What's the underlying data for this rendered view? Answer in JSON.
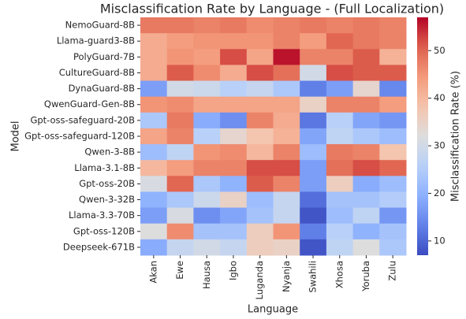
{
  "chart_data": {
    "type": "heatmap",
    "title": "Misclassification Rate by Language - (Full Localization)",
    "x_label": "Language",
    "y_label": "Model",
    "colorbar_label": "Misclassification Rate (%)",
    "colormap": "coolwarm",
    "columns": [
      "Akan",
      "Ewe",
      "Hausa",
      "Igbo",
      "Luganda",
      "Nyanja",
      "Swahili",
      "Xhosa",
      "Yoruba",
      "Zulu"
    ],
    "rows": [
      "NemoGuard-8B",
      "Llama-guard3-8B",
      "PolyGuard-7B",
      "CultureGuard-8B",
      "DynaGuard-8B",
      "QwenGuard-Gen-8B",
      "Gpt-oss-safeguard-20B",
      "Gpt-oss-safeguard-120B",
      "Qwen-3-8B",
      "Llama-3.1-8B",
      "Gpt-oss-20B",
      "Qwen-3-32B",
      "Llama-3.3-70B",
      "Gpt-oss-120B",
      "Deepseek-671B"
    ],
    "values": [
      [
        48,
        48,
        47,
        48,
        46,
        47,
        48,
        47,
        48,
        47
      ],
      [
        42,
        44,
        45,
        45,
        45,
        47,
        44,
        50,
        48,
        47
      ],
      [
        42,
        45,
        44,
        52,
        43,
        56,
        47,
        47,
        51,
        41
      ],
      [
        42,
        51,
        46,
        42,
        52,
        49,
        30,
        52,
        51,
        51
      ],
      [
        17,
        30,
        29,
        26,
        28,
        24,
        13,
        17,
        34,
        14
      ],
      [
        45,
        46,
        43,
        43,
        43,
        43,
        35,
        47,
        47,
        44
      ],
      [
        24,
        48,
        19,
        15,
        47,
        42,
        12,
        26,
        18,
        16
      ],
      [
        43,
        47,
        26,
        34,
        38,
        41,
        18,
        27,
        24,
        22
      ],
      [
        22,
        27,
        45,
        46,
        40,
        47,
        22,
        48,
        47,
        38
      ],
      [
        40,
        44,
        47,
        47,
        52,
        52,
        17,
        49,
        52,
        50
      ],
      [
        31,
        50,
        24,
        20,
        51,
        47,
        17,
        36,
        19,
        22
      ],
      [
        20,
        24,
        29,
        35,
        22,
        28,
        11,
        23,
        23,
        25
      ],
      [
        17,
        31,
        15,
        18,
        23,
        28,
        8,
        22,
        27,
        16
      ],
      [
        32,
        46,
        23,
        23,
        36,
        45,
        13,
        26,
        20,
        23
      ],
      [
        19,
        28,
        30,
        28,
        36,
        35,
        8,
        27,
        32,
        24
      ]
    ],
    "colorbar_lim": [
      7,
      57
    ],
    "colorbar_ticks": [
      10,
      20,
      30,
      40,
      50
    ]
  }
}
